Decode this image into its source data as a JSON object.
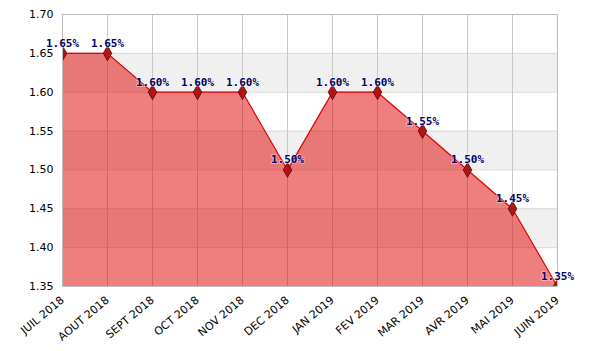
{
  "chart_data": {
    "type": "area",
    "categories": [
      "JUIL 2018",
      "AOUT 2018",
      "SEPT 2018",
      "OCT 2018",
      "NOV 2018",
      "DEC 2018",
      "JAN 2019",
      "FEV 2019",
      "MAR 2019",
      "AVR 2019",
      "MAI 2019",
      "JUIN 2019"
    ],
    "values": [
      1.65,
      1.65,
      1.6,
      1.6,
      1.6,
      1.5,
      1.6,
      1.6,
      1.55,
      1.5,
      1.45,
      1.35
    ],
    "value_labels": [
      "1.65%",
      "1.65%",
      "1.60%",
      "1.60%",
      "1.60%",
      "1.50%",
      "1.60%",
      "1.60%",
      "1.55%",
      "1.50%",
      "1.45%",
      "1.35%"
    ],
    "color": "#e00000",
    "marker": "diamond",
    "ylim": [
      1.35,
      1.7
    ],
    "yticks": [
      1.35,
      {
        "value": 1.4,
        "label": "1.40"
      },
      1.45,
      {
        "value": 1.5,
        "label": "1.50"
      },
      1.55,
      {
        "value": 1.6,
        "label": "1.60"
      },
      1.65,
      {
        "value": 1.7,
        "label": "1.70"
      }
    ],
    "grid": true,
    "data_labels": true
  }
}
